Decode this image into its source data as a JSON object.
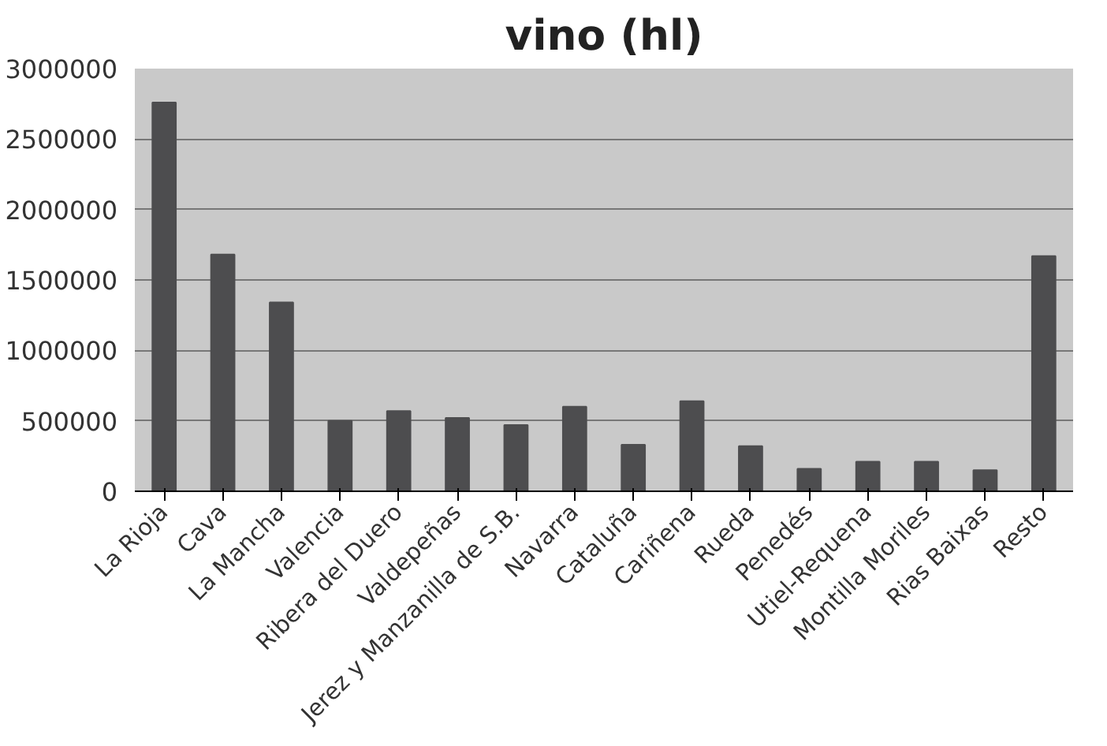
{
  "chart_data": {
    "type": "bar",
    "title": "vino (hl)",
    "categories": [
      "La Rioja",
      "Cava",
      "La Mancha",
      "Valencia",
      "Ribera del Duero",
      "Valdepeñas",
      "Jerez y Manzanilla de S.B.",
      "Navarra",
      "Cataluña",
      "Cariñena",
      "Rueda",
      "Penedés",
      "Utiel-Requena",
      "Montilla Moriles",
      "Rias Baixas",
      "Resto"
    ],
    "values": [
      2760000,
      1680000,
      1340000,
      500000,
      570000,
      520000,
      470000,
      600000,
      330000,
      640000,
      320000,
      160000,
      210000,
      210000,
      150000,
      1670000
    ],
    "color": "#4d4d4f",
    "ylim": [
      0,
      3000000
    ],
    "yticks": [
      0,
      500000,
      1000000,
      1500000,
      2000000,
      2500000,
      3000000
    ],
    "grid": "y"
  }
}
